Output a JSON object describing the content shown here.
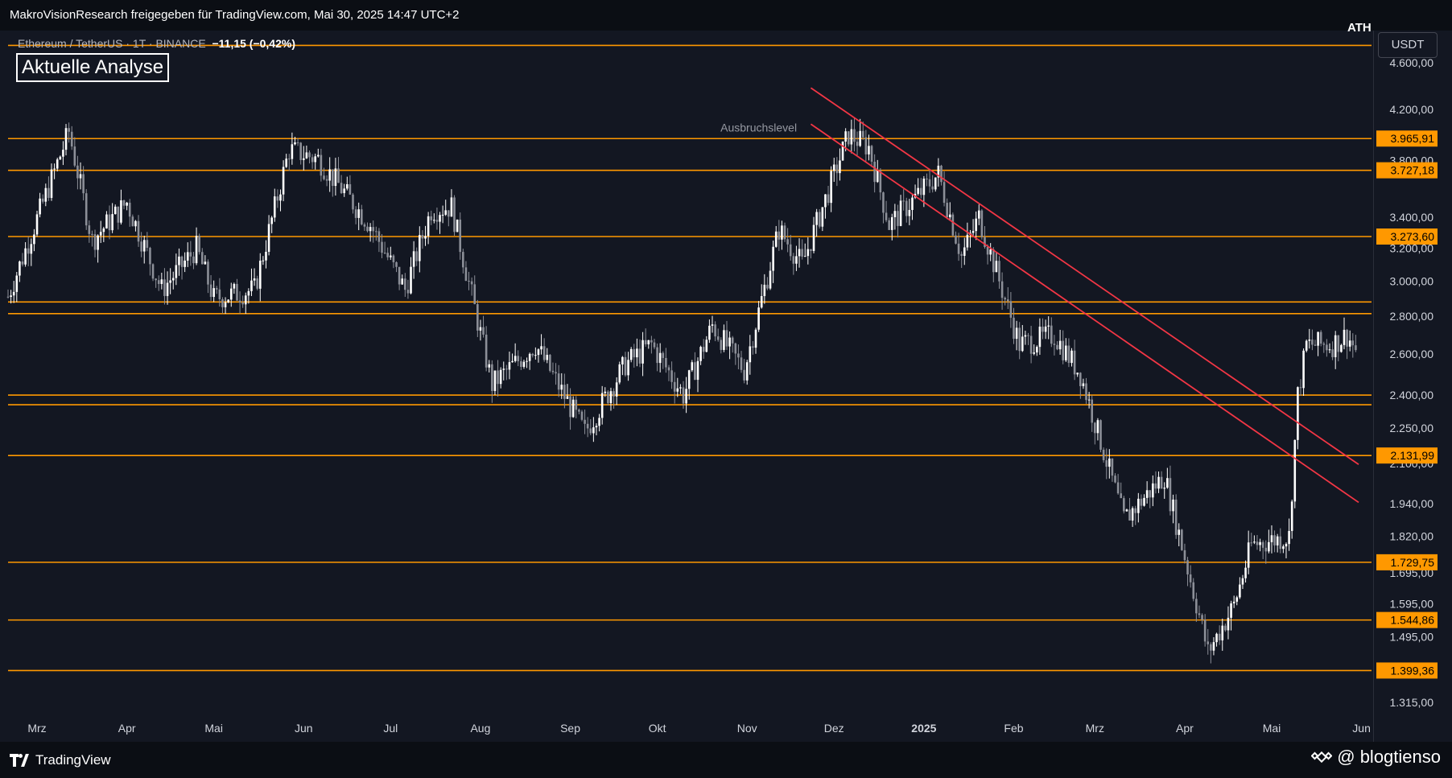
{
  "header": {
    "published_by": "MakroVisionResearch freigegeben für TradingView.com, Mai 30, 2025 14:47 UTC+2",
    "symbol": "Ethereum / TetherUS · 1T · BINANCE",
    "change": "−11,15 (−0,42%)",
    "badge": "Aktuelle Analyse",
    "currency_button": "USDT",
    "ath_label": "ATH"
  },
  "footer": {
    "brand": "TradingView",
    "handle": "@ blogtienso"
  },
  "colors": {
    "background": "#131722",
    "level_line": "#ff9800",
    "trend_line": "#f23645",
    "candle_up": "#ffffff",
    "candle_down": "#8c8f98",
    "axis_text": "#d1d4dc"
  },
  "chart_data": {
    "type": "candlestick",
    "symbol": "ETHUSDT",
    "timeframe": "1T",
    "exchange": "BINANCE",
    "y_scale": "log",
    "ylim": [
      1260,
      4900
    ],
    "x_range": [
      "2024-02-20",
      "2025-06-05"
    ],
    "y_ticks": [
      "4.600,00",
      "4.200,00",
      "3.800,00",
      "3.400,00",
      "3.200,00",
      "3.000,00",
      "2.800,00",
      "2.600,00",
      "2.400,00",
      "2.250,00",
      "2.100,00",
      "1.940,00",
      "1.820,00",
      "1.695,00",
      "1.595,00",
      "1.495,00",
      "1.315,00"
    ],
    "y_tick_values": [
      4600,
      4200,
      3800,
      3400,
      3200,
      3000,
      2800,
      2600,
      2400,
      2250,
      2100,
      1940,
      1820,
      1695,
      1595,
      1495,
      1315
    ],
    "x_ticks": [
      {
        "label": "Mrz",
        "date": "2024-03-01",
        "bold": false
      },
      {
        "label": "Apr",
        "date": "2024-04-01",
        "bold": false
      },
      {
        "label": "Mai",
        "date": "2024-05-01",
        "bold": false
      },
      {
        "label": "Jun",
        "date": "2024-06-01",
        "bold": false
      },
      {
        "label": "Jul",
        "date": "2024-07-01",
        "bold": false
      },
      {
        "label": "Aug",
        "date": "2024-08-01",
        "bold": false
      },
      {
        "label": "Sep",
        "date": "2024-09-01",
        "bold": false
      },
      {
        "label": "Okt",
        "date": "2024-10-01",
        "bold": false
      },
      {
        "label": "Nov",
        "date": "2024-11-01",
        "bold": false
      },
      {
        "label": "Dez",
        "date": "2024-12-01",
        "bold": false
      },
      {
        "label": "2025",
        "date": "2025-01-01",
        "bold": true
      },
      {
        "label": "Feb",
        "date": "2025-02-01",
        "bold": false
      },
      {
        "label": "Mrz",
        "date": "2025-03-01",
        "bold": false
      },
      {
        "label": "Apr",
        "date": "2025-04-01",
        "bold": false
      },
      {
        "label": "Mai",
        "date": "2025-05-01",
        "bold": false
      },
      {
        "label": "Jun",
        "date": "2025-06-01",
        "bold": false
      }
    ],
    "price_levels": [
      {
        "value": 4760,
        "label": null
      },
      {
        "value": 3965.91,
        "label": "3.965,91"
      },
      {
        "value": 3727.18,
        "label": "3.727,18"
      },
      {
        "value": 3273.6,
        "label": "3.273,60"
      },
      {
        "value": 2880,
        "label": null
      },
      {
        "value": 2815,
        "label": null
      },
      {
        "value": 2400,
        "label": null
      },
      {
        "value": 2355,
        "label": null
      },
      {
        "value": 2131.99,
        "label": "2.131,99"
      },
      {
        "value": 1729.75,
        "label": "1.729,75"
      },
      {
        "value": 1544.86,
        "label": "1.544,86"
      },
      {
        "value": 1399.36,
        "label": "1.399,36"
      }
    ],
    "trend_lines": [
      {
        "from": {
          "date": "2024-11-23",
          "price": 4380
        },
        "to": {
          "date": "2025-05-31",
          "price": 2095
        }
      },
      {
        "from": {
          "date": "2024-11-23",
          "price": 4080
        },
        "to": {
          "date": "2025-05-31",
          "price": 1945
        }
      }
    ],
    "annotations": [
      {
        "text": "Ausbruchslevel",
        "date": "2024-11-05",
        "price": 4020
      }
    ],
    "anchors": [
      [
        "2024-02-20",
        2910
      ],
      [
        "2024-03-01",
        3390
      ],
      [
        "2024-03-12",
        4020
      ],
      [
        "2024-03-20",
        3250
      ],
      [
        "2024-04-01",
        3500
      ],
      [
        "2024-04-13",
        2950
      ],
      [
        "2024-04-25",
        3200
      ],
      [
        "2024-05-01",
        2900
      ],
      [
        "2024-05-15",
        2950
      ],
      [
        "2024-05-27",
        3880
      ],
      [
        "2024-06-06",
        3810
      ],
      [
        "2024-06-24",
        3350
      ],
      [
        "2024-07-06",
        2950
      ],
      [
        "2024-07-15",
        3450
      ],
      [
        "2024-07-22",
        3470
      ],
      [
        "2024-08-05",
        2450
      ],
      [
        "2024-08-20",
        2650
      ],
      [
        "2024-09-06",
        2230
      ],
      [
        "2024-09-20",
        2550
      ],
      [
        "2024-09-29",
        2650
      ],
      [
        "2024-10-10",
        2400
      ],
      [
        "2024-10-20",
        2750
      ],
      [
        "2024-10-31",
        2520
      ],
      [
        "2024-11-12",
        3320
      ],
      [
        "2024-11-20",
        3100
      ],
      [
        "2024-12-06",
        4000
      ],
      [
        "2024-12-13",
        3900
      ],
      [
        "2024-12-20",
        3350
      ],
      [
        "2025-01-06",
        3700
      ],
      [
        "2025-01-14",
        3150
      ],
      [
        "2025-01-20",
        3400
      ],
      [
        "2025-02-03",
        2650
      ],
      [
        "2025-02-15",
        2700
      ],
      [
        "2025-02-24",
        2500
      ],
      [
        "2025-03-04",
        2150
      ],
      [
        "2025-03-11",
        1880
      ],
      [
        "2025-03-25",
        2050
      ],
      [
        "2025-04-06",
        1560
      ],
      [
        "2025-04-09",
        1450
      ],
      [
        "2025-04-18",
        1590
      ],
      [
        "2025-04-24",
        1790
      ],
      [
        "2025-05-07",
        1820
      ],
      [
        "2025-05-10",
        2400
      ],
      [
        "2025-05-13",
        2650
      ],
      [
        "2025-05-22",
        2650
      ],
      [
        "2025-05-27",
        2700
      ],
      [
        "2025-05-30",
        2620
      ]
    ]
  }
}
